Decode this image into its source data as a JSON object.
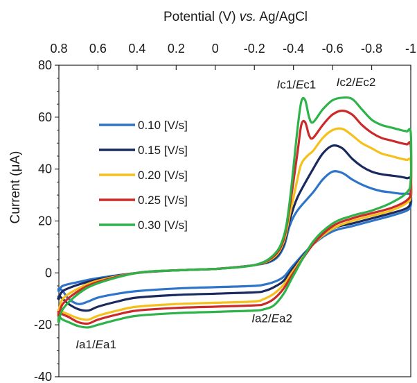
{
  "chart_data": {
    "type": "line",
    "title": "",
    "xlabel_parts": [
      "Potential (V) ",
      "vs.",
      " Ag/AgCl"
    ],
    "ylabel_parts": [
      "Current (",
      "μ",
      "A)"
    ],
    "xlim": [
      0.8,
      -1.0
    ],
    "ylim": [
      -40,
      80
    ],
    "x_ticks": [
      0.8,
      0.6,
      0.4,
      0.2,
      0,
      -0.2,
      -0.4,
      -0.6,
      -0.8,
      -1
    ],
    "x_tick_labels": [
      "0.8",
      "0.6",
      "0.4",
      "0.2",
      "0",
      "-0.2",
      "-0.4",
      "-0.6",
      "-0.8",
      "-1"
    ],
    "y_ticks": [
      -40,
      -20,
      0,
      20,
      40,
      60,
      80
    ],
    "y_tick_labels": [
      "-40",
      "-20",
      "0",
      "20",
      "40",
      "60",
      "80"
    ],
    "legend_position": "top-left",
    "grid": false,
    "annotations": [
      {
        "id": "ic1",
        "italic": "I",
        "mid": "c1/",
        "italic2": "E",
        "end": "c1",
        "x": -0.415,
        "y": 71
      },
      {
        "id": "ic2",
        "italic": "I",
        "mid": "c2/",
        "italic2": "E",
        "end": "c2",
        "x": -0.72,
        "y": 72
      },
      {
        "id": "ia1",
        "italic": "I",
        "mid": "a1/",
        "italic2": "E",
        "end": "a1",
        "x": 0.61,
        "y": -29
      },
      {
        "id": "ia2",
        "italic": "I",
        "mid": "a2/",
        "italic2": "E",
        "end": "a2",
        "x": -0.29,
        "y": -19
      }
    ],
    "series": [
      {
        "name": "0.10 [V/s]",
        "color": "#2e75c9",
        "x": [
          0,
          -0.2,
          -0.3,
          -0.35,
          -0.38,
          -0.42,
          -0.5,
          -0.55,
          -0.6,
          -0.65,
          -0.7,
          -0.75,
          -0.8,
          -0.85,
          -0.9,
          -0.95,
          -0.98,
          -1.0,
          -1.0,
          -0.98,
          -0.9,
          -0.8,
          -0.7,
          -0.6,
          -0.5,
          -0.4,
          -0.35,
          -0.3,
          -0.25,
          -0.2,
          0,
          0.2,
          0.4,
          0.5,
          0.6,
          0.65,
          0.7,
          0.75,
          0.78,
          0.8,
          0.8,
          0.78,
          0.7,
          0.6,
          0.4,
          0.2,
          0
        ],
        "y": [
          1.5,
          3,
          5,
          10,
          18,
          24,
          31,
          36,
          39,
          38.5,
          36,
          34,
          32.5,
          31.5,
          31,
          30.5,
          30.5,
          30,
          26,
          24,
          22,
          20,
          18,
          16,
          11,
          3,
          -1.5,
          -3.5,
          -4.5,
          -5,
          -5.5,
          -6,
          -7,
          -8,
          -9.5,
          -11,
          -12,
          -10,
          -7,
          -6,
          -7,
          -5,
          -3.5,
          -2,
          0,
          1,
          1.5
        ]
      },
      {
        "name": "0.15 [V/s]",
        "color": "#1b2a5e",
        "x": [
          0,
          -0.2,
          -0.3,
          -0.35,
          -0.38,
          -0.42,
          -0.5,
          -0.55,
          -0.6,
          -0.65,
          -0.7,
          -0.75,
          -0.8,
          -0.85,
          -0.9,
          -0.95,
          -0.98,
          -1.0,
          -1.0,
          -0.98,
          -0.9,
          -0.8,
          -0.7,
          -0.6,
          -0.5,
          -0.4,
          -0.35,
          -0.3,
          -0.25,
          -0.2,
          0,
          0.2,
          0.4,
          0.5,
          0.6,
          0.65,
          0.7,
          0.75,
          0.78,
          0.8,
          0.8,
          0.78,
          0.7,
          0.6,
          0.4,
          0.2,
          0
        ],
        "y": [
          1.5,
          3,
          5.5,
          11,
          20,
          29,
          40,
          46,
          49,
          48,
          44,
          41,
          39,
          38,
          37.5,
          37,
          36.5,
          36,
          28,
          25,
          23,
          21,
          19,
          17,
          11,
          2,
          -3,
          -5.5,
          -7,
          -7.5,
          -8,
          -8.5,
          -9.5,
          -11,
          -13,
          -14.5,
          -14,
          -12,
          -10,
          -9,
          -10,
          -7,
          -4.5,
          -2.5,
          0,
          1,
          1.5
        ]
      },
      {
        "name": "0.20 [V/s]",
        "color": "#f5c01c",
        "x": [
          0,
          -0.2,
          -0.3,
          -0.35,
          -0.38,
          -0.42,
          -0.44,
          -0.47,
          -0.5,
          -0.55,
          -0.6,
          -0.65,
          -0.7,
          -0.75,
          -0.8,
          -0.85,
          -0.9,
          -0.95,
          -0.98,
          -1.0,
          -1.0,
          -0.98,
          -0.9,
          -0.8,
          -0.7,
          -0.6,
          -0.5,
          -0.4,
          -0.35,
          -0.3,
          -0.25,
          -0.2,
          0,
          0.2,
          0.4,
          0.5,
          0.6,
          0.65,
          0.7,
          0.75,
          0.78,
          0.8,
          0.8,
          0.78,
          0.7,
          0.6,
          0.4,
          0.2,
          0
        ],
        "y": [
          1.5,
          3,
          6,
          12,
          22,
          36,
          42,
          45,
          47,
          52,
          55,
          55.5,
          53,
          50,
          48,
          46,
          45,
          44,
          43.5,
          43,
          30,
          27,
          24,
          22,
          20,
          17,
          11,
          1,
          -4.5,
          -8,
          -10,
          -11,
          -11.5,
          -12,
          -13,
          -14.5,
          -16.5,
          -18,
          -17.5,
          -16,
          -15,
          -14,
          -15,
          -10,
          -6,
          -3,
          0,
          1,
          1.5
        ]
      },
      {
        "name": "0.25 [V/s]",
        "color": "#cc2a2a",
        "x": [
          0,
          -0.2,
          -0.3,
          -0.35,
          -0.38,
          -0.42,
          -0.44,
          -0.46,
          -0.48,
          -0.5,
          -0.55,
          -0.6,
          -0.65,
          -0.7,
          -0.75,
          -0.8,
          -0.85,
          -0.9,
          -0.95,
          -0.98,
          -1.0,
          -1.0,
          -0.98,
          -0.9,
          -0.8,
          -0.7,
          -0.6,
          -0.5,
          -0.4,
          -0.35,
          -0.3,
          -0.25,
          -0.2,
          0,
          0.2,
          0.4,
          0.5,
          0.6,
          0.65,
          0.7,
          0.75,
          0.78,
          0.8,
          0.8,
          0.78,
          0.7,
          0.6,
          0.4,
          0.2,
          0
        ],
        "y": [
          1.5,
          3,
          6.5,
          13,
          25,
          46,
          57,
          58,
          53,
          52,
          57,
          61,
          62.5,
          61,
          57,
          54,
          52,
          51,
          50,
          49.5,
          49,
          32,
          28,
          25,
          23,
          21,
          18,
          11,
          0,
          -6,
          -10,
          -12,
          -12.5,
          -13,
          -13.5,
          -14.5,
          -16,
          -18,
          -19.5,
          -19,
          -17,
          -16,
          -15,
          -17,
          -12,
          -7,
          -3.5,
          0,
          1,
          1.5
        ]
      },
      {
        "name": "0.30 [V/s]",
        "color": "#2eb34a",
        "x": [
          0,
          -0.2,
          -0.3,
          -0.35,
          -0.38,
          -0.42,
          -0.44,
          -0.46,
          -0.48,
          -0.5,
          -0.55,
          -0.6,
          -0.65,
          -0.7,
          -0.75,
          -0.8,
          -0.85,
          -0.9,
          -0.95,
          -0.98,
          -1.0,
          -1.0,
          -0.98,
          -0.9,
          -0.8,
          -0.7,
          -0.6,
          -0.5,
          -0.4,
          -0.35,
          -0.3,
          -0.25,
          -0.2,
          0,
          0.2,
          0.4,
          0.5,
          0.6,
          0.65,
          0.7,
          0.75,
          0.78,
          0.8,
          0.8,
          0.78,
          0.7,
          0.6,
          0.4,
          0.2,
          0
        ],
        "y": [
          1.5,
          3,
          7,
          14,
          27,
          55,
          66,
          66.5,
          60,
          58,
          63,
          66.5,
          67.5,
          67,
          63,
          59,
          57,
          56,
          55,
          54.5,
          54,
          36,
          31,
          27,
          24,
          22,
          19,
          12,
          -1,
          -8,
          -12.5,
          -14,
          -14.5,
          -15,
          -15.5,
          -16.5,
          -18,
          -20,
          -21,
          -20.5,
          -19,
          -18,
          -17,
          -19,
          -14,
          -8,
          -4,
          0,
          1,
          1.5
        ]
      }
    ]
  }
}
